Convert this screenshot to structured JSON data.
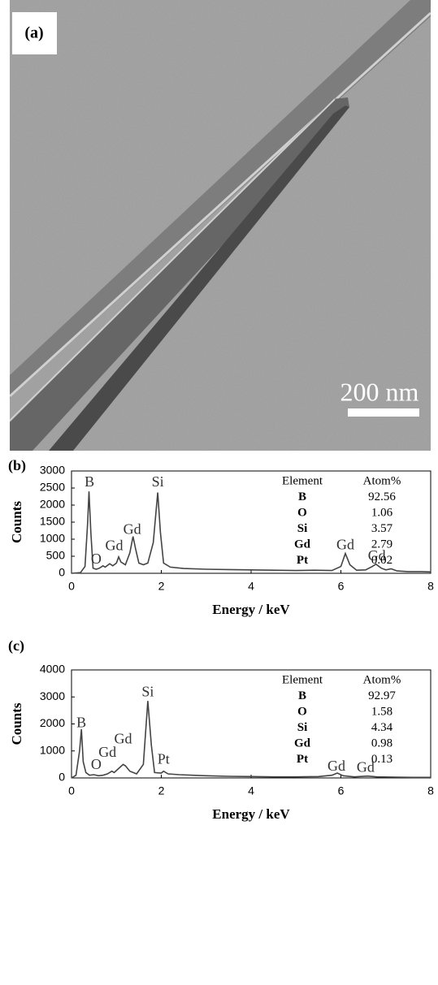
{
  "image": {
    "label": "(a)",
    "scale_bar": "200 nm"
  },
  "chart_data": [
    {
      "type": "line",
      "panel": "(b)",
      "xlabel": "Energy / keV",
      "ylabel": "Counts",
      "color": "#444",
      "xlim": [
        0,
        8
      ],
      "xticks": [
        0,
        2,
        4,
        6,
        8
      ],
      "ylim": [
        0,
        3000
      ],
      "yticks": [
        0,
        500,
        1000,
        1500,
        2000,
        2500,
        3000
      ],
      "x": [
        0,
        0.2,
        0.3,
        0.36,
        0.39,
        0.43,
        0.48,
        0.55,
        0.62,
        0.7,
        0.75,
        0.85,
        0.92,
        1.0,
        1.05,
        1.1,
        1.2,
        1.3,
        1.37,
        1.43,
        1.5,
        1.6,
        1.7,
        1.82,
        1.92,
        1.98,
        2.05,
        2.2,
        2.5,
        3.0,
        3.5,
        4.0,
        4.5,
        5.0,
        5.4,
        5.8,
        6.0,
        6.1,
        6.2,
        6.35,
        6.55,
        6.7,
        6.78,
        6.9,
        7.0,
        7.12,
        7.25,
        7.5,
        7.8,
        8.0
      ],
      "values": [
        0,
        20,
        200,
        1500,
        2400,
        1200,
        150,
        120,
        150,
        220,
        180,
        280,
        220,
        300,
        480,
        330,
        250,
        600,
        1080,
        700,
        300,
        250,
        300,
        900,
        2370,
        1200,
        300,
        180,
        140,
        120,
        110,
        100,
        90,
        80,
        90,
        80,
        200,
        580,
        250,
        90,
        100,
        200,
        270,
        150,
        100,
        130,
        70,
        50,
        50,
        40
      ],
      "annotations": [
        {
          "text": "B",
          "x": 0.4,
          "y": 2650
        },
        {
          "text": "O",
          "x": 0.55,
          "y": 380
        },
        {
          "text": "Gd",
          "x": 0.95,
          "y": 780
        },
        {
          "text": "Gd",
          "x": 1.35,
          "y": 1250
        },
        {
          "text": "Si",
          "x": 1.92,
          "y": 2650
        },
        {
          "text": "Gd",
          "x": 6.1,
          "y": 800
        },
        {
          "text": "Gd",
          "x": 6.8,
          "y": 480
        }
      ],
      "table": {
        "columns": [
          "Element",
          "Atom%"
        ],
        "rows": [
          [
            "B",
            92.56
          ],
          [
            "O",
            1.06
          ],
          [
            "Si",
            3.57
          ],
          [
            "Gd",
            2.79
          ],
          [
            "Pt",
            0.02
          ]
        ]
      }
    },
    {
      "type": "line",
      "panel": "(c)",
      "xlabel": "Energy / keV",
      "ylabel": "Counts",
      "color": "#444",
      "xlim": [
        0,
        8
      ],
      "xticks": [
        0,
        2,
        4,
        6,
        8
      ],
      "ylim": [
        0,
        4000
      ],
      "yticks": [
        0,
        1000,
        2000,
        3000,
        4000
      ],
      "x": [
        0,
        0.1,
        0.18,
        0.22,
        0.26,
        0.32,
        0.4,
        0.5,
        0.6,
        0.7,
        0.8,
        0.9,
        0.95,
        1.05,
        1.15,
        1.2,
        1.3,
        1.45,
        1.6,
        1.7,
        1.78,
        1.85,
        2.0,
        2.05,
        2.15,
        2.4,
        2.7,
        3.0,
        3.5,
        4.0,
        4.5,
        5.0,
        5.5,
        5.8,
        5.92,
        6.05,
        6.3,
        6.6,
        6.8,
        7.2,
        7.6,
        8.0
      ],
      "values": [
        0,
        100,
        1000,
        1800,
        600,
        200,
        100,
        120,
        80,
        100,
        150,
        250,
        200,
        350,
        500,
        450,
        250,
        150,
        500,
        2850,
        1200,
        200,
        180,
        250,
        150,
        120,
        100,
        80,
        60,
        50,
        40,
        40,
        50,
        100,
        180,
        80,
        40,
        70,
        40,
        30,
        20,
        20
      ],
      "annotations": [
        {
          "text": "B",
          "x": 0.22,
          "y": 2000
        },
        {
          "text": "O",
          "x": 0.55,
          "y": 450
        },
        {
          "text": "Gd",
          "x": 0.8,
          "y": 900
        },
        {
          "text": "Gd",
          "x": 1.15,
          "y": 1400
        },
        {
          "text": "Si",
          "x": 1.7,
          "y": 3150
        },
        {
          "text": "Pt",
          "x": 2.05,
          "y": 650
        },
        {
          "text": "Gd",
          "x": 5.9,
          "y": 400
        },
        {
          "text": "Gd",
          "x": 6.55,
          "y": 350
        }
      ],
      "table": {
        "columns": [
          "Element",
          "Atom%"
        ],
        "rows": [
          [
            "B",
            92.97
          ],
          [
            "O",
            1.58
          ],
          [
            "Si",
            4.34
          ],
          [
            "Gd",
            0.98
          ],
          [
            "Pt",
            0.13
          ]
        ]
      }
    }
  ]
}
